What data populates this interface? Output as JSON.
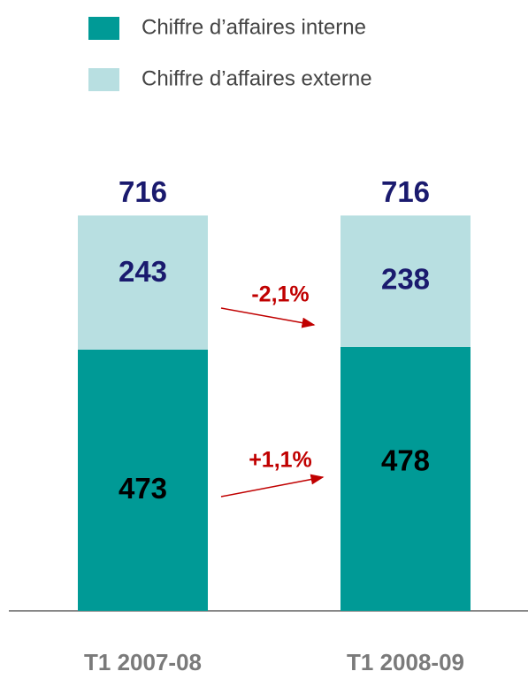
{
  "chart_data": {
    "type": "stacked_bar",
    "categories": [
      "T1 2007-08",
      "T1 2008-09"
    ],
    "series": [
      {
        "name": "Chiffre d’affaires interne",
        "color": "#009a96",
        "values": [
          473,
          478
        ]
      },
      {
        "name": "Chiffre d’affaires externe",
        "color": "#b8dfe1",
        "values": [
          243,
          238
        ]
      }
    ],
    "totals": [
      716,
      716
    ],
    "annotations": [
      "-2,1%",
      "+1,1%"
    ]
  }
}
